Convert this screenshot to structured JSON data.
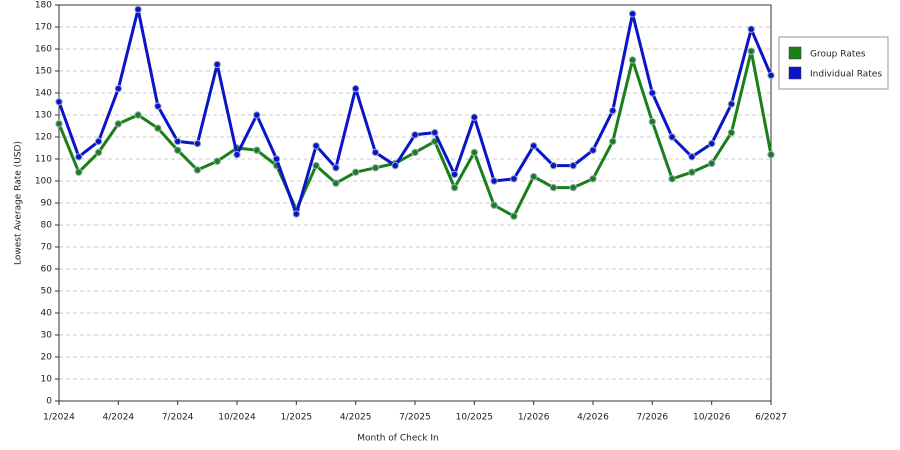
{
  "chart_data": {
    "type": "line",
    "x_label": "Month of Check In",
    "y_label": "Lowest Average Rate (USD)",
    "categories": [
      "1/2024",
      null,
      null,
      "4/2024",
      null,
      null,
      "7/2024",
      null,
      null,
      "10/2024",
      null,
      null,
      "1/2025",
      null,
      null,
      "4/2025",
      null,
      null,
      "7/2025",
      null,
      null,
      "10/2025",
      null,
      null,
      "1/2026",
      null,
      null,
      "4/2026",
      null,
      null,
      "7/2026",
      null,
      null,
      "10/2026",
      null,
      null,
      "6/2027"
    ],
    "series": [
      {
        "name": "Group Rates",
        "color": "#1a7f1a",
        "values": [
          126,
          104,
          113,
          126,
          130,
          124,
          114,
          105,
          109,
          115,
          114,
          107,
          87,
          107,
          99,
          104,
          106,
          108,
          113,
          118,
          97,
          113,
          89,
          84,
          102,
          97,
          97,
          101,
          118,
          155,
          127,
          101,
          104,
          108,
          122,
          159,
          112
        ]
      },
      {
        "name": "Individual Rates",
        "color": "#0a14c8",
        "values": [
          136,
          111,
          118,
          142,
          178,
          134,
          118,
          117,
          153,
          112,
          130,
          110,
          85,
          116,
          106,
          142,
          113,
          107,
          121,
          122,
          103,
          129,
          100,
          101,
          116,
          107,
          107,
          114,
          132,
          176,
          140,
          120,
          111,
          117,
          135,
          169,
          148
        ]
      }
    ],
    "ylim": [
      0,
      180
    ],
    "yticks": [
      0,
      10,
      20,
      30,
      40,
      50,
      60,
      70,
      80,
      90,
      100,
      110,
      120,
      130,
      140,
      150,
      160,
      170,
      180
    ],
    "grid": true,
    "legend_position": "right"
  }
}
